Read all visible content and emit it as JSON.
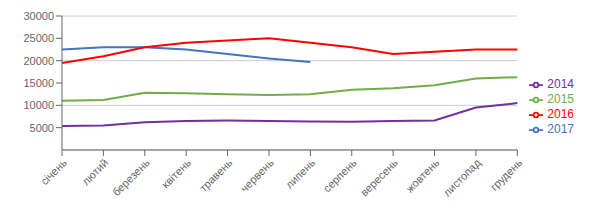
{
  "chart_data": {
    "type": "line",
    "categories": [
      "січень",
      "лютий",
      "березень",
      "квітень",
      "травень",
      "червень",
      "липень",
      "серпень",
      "вересень",
      "жовтень",
      "листопад",
      "грудень"
    ],
    "series": [
      {
        "name": "2017",
        "color": "#4472C4",
        "values": [
          22500,
          23000,
          23000,
          22500,
          21500,
          20500,
          19700,
          null,
          null,
          null,
          null,
          null
        ]
      },
      {
        "name": "2016",
        "color": "#FF0000",
        "values": [
          19500,
          21000,
          23000,
          24000,
          24500,
          25000,
          24000,
          23000,
          21500,
          22000,
          22500,
          22500
        ]
      },
      {
        "name": "2015",
        "color": "#70AD47",
        "values": [
          11000,
          11200,
          12800,
          12700,
          12500,
          12300,
          12500,
          13500,
          13800,
          14500,
          16000,
          16300
        ]
      },
      {
        "name": "2014",
        "color": "#7030A0",
        "values": [
          5400,
          5500,
          6200,
          6500,
          6600,
          6500,
          6400,
          6300,
          6500,
          6600,
          9500,
          10500
        ]
      }
    ],
    "ylim": [
      0,
      30000
    ],
    "yticks": [
      5000,
      10000,
      15000,
      20000,
      25000,
      30000
    ],
    "grid": true,
    "legend": "right"
  }
}
